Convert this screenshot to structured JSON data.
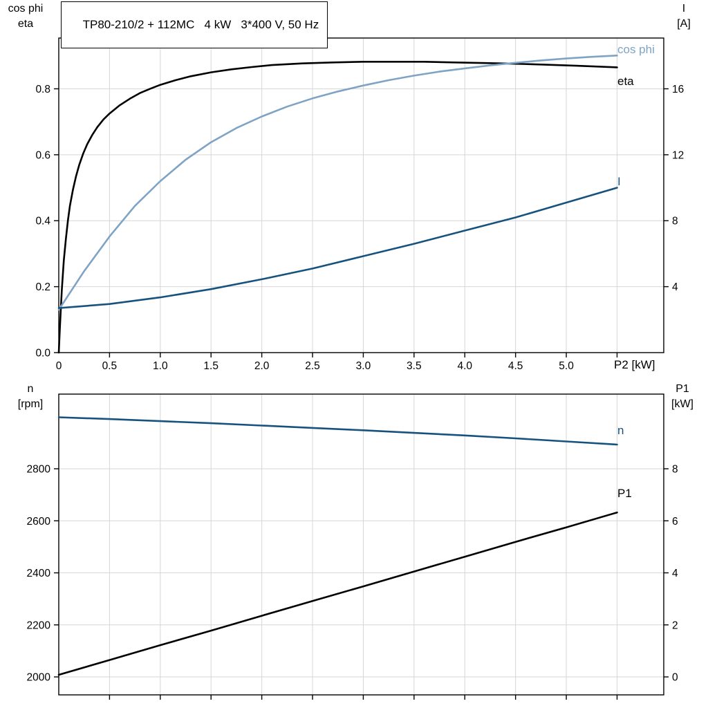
{
  "title_box": "TP80-210/2 + 112MC   4 kW   3*400 V, 50 Hz",
  "colors": {
    "curve_black": "#000000",
    "curve_lightblue": "#7ea3c4",
    "curve_darkblue": "#16527e",
    "grid": "#d6d6d6",
    "axis": "#000000",
    "text": "#000000"
  },
  "axis_corner_labels": {
    "top_left_1": "cos phi",
    "top_left_2": "eta",
    "top_right_1": "I",
    "top_right_2": "[A]",
    "bottom_left_1": "n",
    "bottom_left_2": "[rpm]",
    "bottom_right_1": "P1",
    "bottom_right_2": "[kW]"
  },
  "chart_data": [
    {
      "type": "line",
      "id": "motor-top-panel",
      "title": "TP80-210/2 + 112MC   4 kW   3*400 V, 50 Hz",
      "xlabel": "P2 [kW]",
      "ylabel_left": "cos phi / eta",
      "ylabel_right": "I [A]",
      "xlim": [
        0,
        5.96
      ],
      "x_ticks": [
        {
          "v": 0,
          "label": "0"
        },
        {
          "v": 0.5,
          "label": "0.5"
        },
        {
          "v": 1,
          "label": "1.0"
        },
        {
          "v": 1.5,
          "label": "1.5"
        },
        {
          "v": 2,
          "label": "2.0"
        },
        {
          "v": 2.5,
          "label": "2.5"
        },
        {
          "v": 3,
          "label": "3.0"
        },
        {
          "v": 3.5,
          "label": "3.5"
        },
        {
          "v": 4,
          "label": "4.0"
        },
        {
          "v": 4.5,
          "label": "4.5"
        },
        {
          "v": 5,
          "label": "5.0"
        }
      ],
      "x_grid": [
        0.5,
        1,
        1.5,
        2,
        2.5,
        3,
        3.5,
        4,
        4.5,
        5,
        5.5
      ],
      "y_left": {
        "lim": [
          0,
          0.954
        ],
        "ticks": [
          {
            "v": 0,
            "label": "0.0"
          },
          {
            "v": 0.2,
            "label": "0.2"
          },
          {
            "v": 0.4,
            "label": "0.4"
          },
          {
            "v": 0.6,
            "label": "0.6"
          },
          {
            "v": 0.8,
            "label": "0.8"
          }
        ]
      },
      "y_right": {
        "lim": [
          0,
          19.08
        ],
        "ticks": [
          {
            "v": 4,
            "label": "4"
          },
          {
            "v": 8,
            "label": "8"
          },
          {
            "v": 12,
            "label": "12"
          },
          {
            "v": 16,
            "label": "16"
          }
        ]
      },
      "series": [
        {
          "name": "eta",
          "axis": "left",
          "color": "curve_black",
          "points": [
            [
              0,
              0
            ],
            [
              0.01,
              0.07
            ],
            [
              0.02,
              0.13
            ],
            [
              0.03,
              0.19
            ],
            [
              0.05,
              0.28
            ],
            [
              0.07,
              0.345
            ],
            [
              0.09,
              0.4
            ],
            [
              0.11,
              0.445
            ],
            [
              0.14,
              0.495
            ],
            [
              0.17,
              0.535
            ],
            [
              0.2,
              0.568
            ],
            [
              0.24,
              0.603
            ],
            [
              0.28,
              0.632
            ],
            [
              0.33,
              0.66
            ],
            [
              0.38,
              0.684
            ],
            [
              0.44,
              0.707
            ],
            [
              0.5,
              0.725
            ],
            [
              0.6,
              0.75
            ],
            [
              0.7,
              0.77
            ],
            [
              0.8,
              0.787
            ],
            [
              0.9,
              0.8
            ],
            [
              1.0,
              0.812
            ],
            [
              1.15,
              0.826
            ],
            [
              1.3,
              0.838
            ],
            [
              1.5,
              0.85
            ],
            [
              1.7,
              0.859
            ],
            [
              1.9,
              0.866
            ],
            [
              2.1,
              0.872
            ],
            [
              2.4,
              0.877
            ],
            [
              2.7,
              0.88
            ],
            [
              3.0,
              0.882
            ],
            [
              3.3,
              0.882
            ],
            [
              3.6,
              0.882
            ],
            [
              3.9,
              0.88
            ],
            [
              4.2,
              0.878
            ],
            [
              4.5,
              0.876
            ],
            [
              4.8,
              0.873
            ],
            [
              5.1,
              0.87
            ],
            [
              5.5,
              0.865
            ]
          ]
        },
        {
          "name": "cos phi",
          "axis": "left",
          "color": "curve_lightblue",
          "points": [
            [
              0,
              0.13
            ],
            [
              0.25,
              0.247
            ],
            [
              0.5,
              0.352
            ],
            [
              0.75,
              0.445
            ],
            [
              1.0,
              0.52
            ],
            [
              1.25,
              0.585
            ],
            [
              1.5,
              0.638
            ],
            [
              1.75,
              0.681
            ],
            [
              2.0,
              0.716
            ],
            [
              2.25,
              0.746
            ],
            [
              2.5,
              0.771
            ],
            [
              2.75,
              0.792
            ],
            [
              3.0,
              0.81
            ],
            [
              3.25,
              0.826
            ],
            [
              3.5,
              0.84
            ],
            [
              3.75,
              0.852
            ],
            [
              4.0,
              0.862
            ],
            [
              4.25,
              0.871
            ],
            [
              4.5,
              0.879
            ],
            [
              4.75,
              0.886
            ],
            [
              5.0,
              0.892
            ],
            [
              5.25,
              0.897
            ],
            [
              5.5,
              0.901
            ]
          ]
        },
        {
          "name": "I",
          "axis": "right",
          "color": "curve_darkblue",
          "points": [
            [
              0,
              2.7
            ],
            [
              0.5,
              2.95
            ],
            [
              1.0,
              3.35
            ],
            [
              1.5,
              3.85
            ],
            [
              2.0,
              4.45
            ],
            [
              2.5,
              5.1
            ],
            [
              3.0,
              5.85
            ],
            [
              3.5,
              6.6
            ],
            [
              4.0,
              7.4
            ],
            [
              4.5,
              8.2
            ],
            [
              5.0,
              9.1
            ],
            [
              5.5,
              10.0
            ]
          ]
        }
      ],
      "annotations": [
        {
          "text": "cos phi",
          "color": "curve_lightblue",
          "x": 893,
          "y": 77
        },
        {
          "text": "eta",
          "color": "curve_black",
          "x": 893,
          "y": 123
        },
        {
          "text": "I",
          "color": "curve_darkblue",
          "x": 893,
          "y": 268
        },
        {
          "text": "P2 [kW]",
          "color": "text",
          "x": 888,
          "y": 533
        }
      ]
    },
    {
      "type": "line",
      "id": "motor-bottom-panel",
      "title": "",
      "xlabel": "",
      "ylabel_left": "n [rpm]",
      "ylabel_right": "P1 [kW]",
      "xlim": [
        0,
        5.96
      ],
      "x_ticks": [],
      "x_grid": [
        0.5,
        1,
        1.5,
        2,
        2.5,
        3,
        3.5,
        4,
        4.5,
        5,
        5.5
      ],
      "y_left": {
        "lim": [
          1931,
          3087
        ],
        "ticks": [
          {
            "v": 2000,
            "label": "2000"
          },
          {
            "v": 2200,
            "label": "2200"
          },
          {
            "v": 2400,
            "label": "2400"
          },
          {
            "v": 2600,
            "label": "2600"
          },
          {
            "v": 2800,
            "label": "2800"
          }
        ]
      },
      "y_right": {
        "lim": [
          -0.69,
          10.87
        ],
        "ticks": [
          {
            "v": 0,
            "label": "0"
          },
          {
            "v": 2,
            "label": "2"
          },
          {
            "v": 4,
            "label": "4"
          },
          {
            "v": 6,
            "label": "6"
          },
          {
            "v": 8,
            "label": "8"
          }
        ]
      },
      "series": [
        {
          "name": "n",
          "axis": "left",
          "color": "curve_darkblue",
          "points": [
            [
              0,
              2998
            ],
            [
              0.5,
              2991
            ],
            [
              1.0,
              2983
            ],
            [
              1.5,
              2975
            ],
            [
              2.0,
              2966
            ],
            [
              2.5,
              2957
            ],
            [
              3.0,
              2948
            ],
            [
              3.5,
              2938
            ],
            [
              4.0,
              2928
            ],
            [
              4.5,
              2917
            ],
            [
              5.0,
              2905
            ],
            [
              5.5,
              2893
            ]
          ]
        },
        {
          "name": "P1",
          "axis": "right",
          "color": "curve_black",
          "points": [
            [
              0,
              0.08
            ],
            [
              0.5,
              0.65
            ],
            [
              1.0,
              1.22
            ],
            [
              1.5,
              1.78
            ],
            [
              2.0,
              2.35
            ],
            [
              2.5,
              2.92
            ],
            [
              3.0,
              3.48
            ],
            [
              3.5,
              4.05
            ],
            [
              4.0,
              4.62
            ],
            [
              4.5,
              5.19
            ],
            [
              5.0,
              5.75
            ],
            [
              5.5,
              6.32
            ]
          ]
        }
      ],
      "annotations": [
        {
          "text": "n",
          "color": "curve_darkblue",
          "x": 893,
          "y": 83
        },
        {
          "text": "P1",
          "color": "curve_black",
          "x": 893,
          "y": 174
        }
      ]
    }
  ]
}
